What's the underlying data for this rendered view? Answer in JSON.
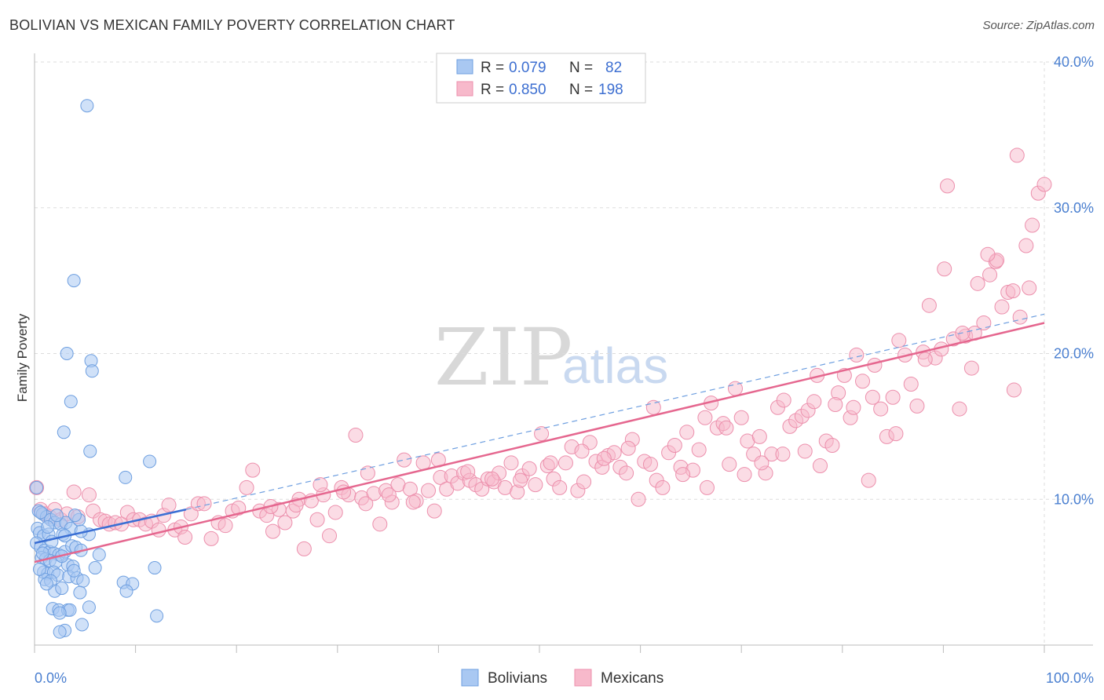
{
  "title": "BOLIVIAN VS MEXICAN FAMILY POVERTY CORRELATION CHART",
  "source": "Source: ZipAtlas.com",
  "colors": {
    "blue_fill": "#a9c8f2",
    "blue_stroke": "#6e9fe0",
    "blue_line": "#3a6fd4",
    "pink_fill": "#f7b9cb",
    "pink_stroke": "#ec8fac",
    "pink_line": "#e5678f",
    "grid": "#dddddd",
    "tick_text": "#4a7fd0"
  },
  "watermark": {
    "zip": "ZIP",
    "atlas": "atlas"
  },
  "legend_top": {
    "rows": [
      {
        "r_label": "R =",
        "r_value": "0.079",
        "n_label": "N =",
        "n_value": "82"
      },
      {
        "r_label": "R =",
        "r_value": "0.850",
        "n_label": "N =",
        "n_value": "198"
      }
    ]
  },
  "legend_bottom": [
    "Bolivians",
    "Mexicans"
  ],
  "chart_data": {
    "type": "scatter",
    "title": "BOLIVIAN VS MEXICAN FAMILY POVERTY CORRELATION CHART",
    "xlabel": "",
    "ylabel": "Family Poverty",
    "xlim": [
      0,
      100
    ],
    "ylim": [
      0,
      40
    ],
    "x_tick_labels": [
      "0.0%",
      "100.0%"
    ],
    "y_ticks": [
      10,
      20,
      30,
      40
    ],
    "y_tick_labels": [
      "10.0%",
      "20.0%",
      "30.0%",
      "40.0%"
    ],
    "grid": true,
    "legend_position": "top-center",
    "series": [
      {
        "name": "Bolivians",
        "R": 0.079,
        "N": 82,
        "trend_solid": [
          [
            0,
            7.0
          ],
          [
            15,
            9.3
          ]
        ],
        "trend_dashed": [
          [
            15,
            9.3
          ],
          [
            100,
            22.7
          ]
        ],
        "points": [
          [
            5.2,
            37
          ],
          [
            3.9,
            25
          ],
          [
            3.2,
            20
          ],
          [
            5.6,
            19.5
          ],
          [
            5.7,
            18.8
          ],
          [
            3.6,
            16.7
          ],
          [
            2.9,
            14.6
          ],
          [
            5.5,
            13.3
          ],
          [
            11.4,
            12.6
          ],
          [
            9.0,
            11.5
          ],
          [
            0.2,
            10.8
          ],
          [
            0.4,
            9.2
          ],
          [
            0.8,
            9.0
          ],
          [
            1.2,
            8.8
          ],
          [
            1.6,
            8.6
          ],
          [
            2.0,
            8.4
          ],
          [
            2.6,
            8.3
          ],
          [
            3.1,
            8.4
          ],
          [
            3.6,
            8.0
          ],
          [
            4.4,
            8.6
          ],
          [
            0.3,
            8.0
          ],
          [
            0.5,
            7.7
          ],
          [
            0.9,
            7.5
          ],
          [
            1.4,
            7.6
          ],
          [
            2.8,
            7.6
          ],
          [
            3.0,
            7.5
          ],
          [
            5.4,
            7.6
          ],
          [
            4.6,
            7.8
          ],
          [
            0.2,
            7.0
          ],
          [
            0.6,
            6.7
          ],
          [
            1.0,
            6.5
          ],
          [
            1.5,
            6.4
          ],
          [
            1.9,
            6.3
          ],
          [
            2.4,
            6.2
          ],
          [
            3.0,
            6.4
          ],
          [
            3.7,
            6.8
          ],
          [
            4.1,
            6.7
          ],
          [
            4.6,
            6.5
          ],
          [
            6.4,
            6.2
          ],
          [
            0.7,
            6.0
          ],
          [
            1.1,
            5.9
          ],
          [
            1.5,
            5.8
          ],
          [
            2.1,
            5.7
          ],
          [
            3.3,
            5.5
          ],
          [
            3.8,
            5.4
          ],
          [
            6.0,
            5.3
          ],
          [
            11.9,
            5.3
          ],
          [
            0.9,
            5.0
          ],
          [
            1.3,
            4.9
          ],
          [
            1.9,
            5.0
          ],
          [
            2.3,
            4.8
          ],
          [
            3.4,
            4.7
          ],
          [
            4.2,
            4.6
          ],
          [
            1.0,
            4.5
          ],
          [
            1.6,
            4.4
          ],
          [
            4.8,
            4.4
          ],
          [
            8.8,
            4.3
          ],
          [
            9.7,
            4.2
          ],
          [
            2.0,
            3.7
          ],
          [
            2.7,
            3.9
          ],
          [
            4.5,
            3.6
          ],
          [
            9.1,
            3.7
          ],
          [
            1.8,
            2.5
          ],
          [
            2.4,
            2.4
          ],
          [
            3.3,
            2.4
          ],
          [
            3.5,
            2.4
          ],
          [
            5.4,
            2.6
          ],
          [
            12.1,
            2.0
          ],
          [
            2.5,
            2.2
          ],
          [
            4.7,
            1.4
          ],
          [
            3.0,
            1.0
          ],
          [
            2.5,
            0.9
          ],
          [
            0.5,
            5.2
          ],
          [
            1.7,
            7.1
          ],
          [
            2.2,
            8.9
          ],
          [
            3.9,
            5.1
          ],
          [
            1.3,
            8.1
          ],
          [
            0.8,
            6.3
          ],
          [
            2.7,
            6.1
          ],
          [
            1.2,
            4.2
          ],
          [
            4.0,
            8.9
          ],
          [
            0.6,
            9.1
          ]
        ]
      },
      {
        "name": "Mexicans",
        "R": 0.85,
        "N": 198,
        "trend_solid": [
          [
            0,
            5.7
          ],
          [
            100,
            22.1
          ]
        ],
        "points": [
          [
            0.2,
            10.8
          ],
          [
            0.6,
            9.3
          ],
          [
            1.0,
            9.0
          ],
          [
            1.5,
            8.8
          ],
          [
            2.0,
            9.3
          ],
          [
            2.6,
            8.6
          ],
          [
            3.2,
            9.0
          ],
          [
            3.9,
            10.5
          ],
          [
            4.3,
            8.8
          ],
          [
            5.4,
            10.3
          ],
          [
            5.8,
            9.2
          ],
          [
            6.5,
            8.6
          ],
          [
            7.0,
            8.5
          ],
          [
            7.4,
            8.3
          ],
          [
            8.0,
            8.4
          ],
          [
            8.6,
            8.3
          ],
          [
            9.2,
            9.1
          ],
          [
            9.8,
            8.6
          ],
          [
            10.4,
            8.6
          ],
          [
            11.0,
            8.3
          ],
          [
            11.6,
            8.5
          ],
          [
            12.3,
            7.9
          ],
          [
            12.8,
            8.9
          ],
          [
            13.3,
            9.6
          ],
          [
            13.9,
            7.9
          ],
          [
            14.5,
            8.1
          ],
          [
            14.9,
            7.4
          ],
          [
            15.5,
            9.0
          ],
          [
            16.2,
            9.7
          ],
          [
            16.8,
            9.7
          ],
          [
            17.5,
            7.3
          ],
          [
            18.2,
            8.4
          ],
          [
            18.9,
            8.2
          ],
          [
            19.6,
            9.2
          ],
          [
            20.2,
            9.4
          ],
          [
            21.0,
            10.8
          ],
          [
            21.6,
            12.0
          ],
          [
            22.3,
            9.2
          ],
          [
            23.0,
            8.9
          ],
          [
            23.6,
            7.8
          ],
          [
            24.2,
            9.3
          ],
          [
            24.8,
            8.4
          ],
          [
            25.6,
            9.2
          ],
          [
            26.2,
            10.0
          ],
          [
            26.7,
            6.6
          ],
          [
            27.4,
            9.9
          ],
          [
            28.0,
            8.6
          ],
          [
            28.6,
            10.3
          ],
          [
            29.2,
            7.5
          ],
          [
            29.8,
            9.1
          ],
          [
            30.4,
            10.8
          ],
          [
            31.1,
            10.3
          ],
          [
            31.8,
            14.4
          ],
          [
            32.4,
            10.1
          ],
          [
            33.0,
            11.8
          ],
          [
            33.6,
            10.4
          ],
          [
            34.2,
            8.3
          ],
          [
            34.8,
            10.6
          ],
          [
            35.4,
            9.8
          ],
          [
            36.0,
            11.0
          ],
          [
            36.6,
            12.7
          ],
          [
            37.2,
            10.7
          ],
          [
            37.8,
            9.9
          ],
          [
            38.5,
            12.5
          ],
          [
            39.0,
            10.6
          ],
          [
            39.6,
            9.2
          ],
          [
            40.2,
            11.5
          ],
          [
            40.8,
            10.7
          ],
          [
            41.3,
            11.6
          ],
          [
            41.9,
            11.1
          ],
          [
            42.5,
            11.8
          ],
          [
            43.1,
            11.3
          ],
          [
            43.7,
            11.0
          ],
          [
            44.3,
            10.7
          ],
          [
            44.9,
            11.4
          ],
          [
            45.5,
            11.2
          ],
          [
            46.0,
            11.8
          ],
          [
            46.6,
            10.8
          ],
          [
            47.2,
            12.5
          ],
          [
            47.8,
            10.5
          ],
          [
            48.3,
            11.6
          ],
          [
            49.0,
            12.1
          ],
          [
            49.6,
            11.0
          ],
          [
            50.2,
            14.5
          ],
          [
            50.8,
            12.3
          ],
          [
            51.4,
            11.4
          ],
          [
            52.0,
            10.8
          ],
          [
            52.6,
            12.5
          ],
          [
            53.2,
            13.6
          ],
          [
            53.8,
            10.6
          ],
          [
            54.4,
            11.2
          ],
          [
            55.0,
            13.9
          ],
          [
            55.6,
            12.6
          ],
          [
            56.2,
            12.2
          ],
          [
            56.8,
            13.0
          ],
          [
            57.4,
            13.2
          ],
          [
            58.0,
            12.2
          ],
          [
            58.6,
            11.8
          ],
          [
            59.2,
            14.1
          ],
          [
            59.8,
            10.0
          ],
          [
            60.4,
            12.6
          ],
          [
            61.0,
            12.4
          ],
          [
            61.6,
            11.3
          ],
          [
            62.2,
            10.8
          ],
          [
            62.8,
            13.2
          ],
          [
            63.4,
            13.7
          ],
          [
            64.0,
            12.2
          ],
          [
            64.6,
            14.6
          ],
          [
            65.2,
            12.0
          ],
          [
            65.8,
            13.4
          ],
          [
            66.4,
            15.6
          ],
          [
            67.0,
            16.6
          ],
          [
            67.6,
            14.9
          ],
          [
            68.2,
            15.2
          ],
          [
            68.8,
            12.4
          ],
          [
            69.4,
            17.6
          ],
          [
            70.0,
            15.6
          ],
          [
            70.6,
            14.0
          ],
          [
            71.2,
            13.1
          ],
          [
            71.8,
            14.3
          ],
          [
            72.4,
            11.8
          ],
          [
            73.0,
            13.1
          ],
          [
            73.6,
            16.3
          ],
          [
            74.2,
            16.8
          ],
          [
            74.8,
            15.0
          ],
          [
            75.4,
            15.4
          ],
          [
            76.0,
            15.7
          ],
          [
            76.6,
            16.1
          ],
          [
            77.2,
            16.7
          ],
          [
            77.8,
            12.3
          ],
          [
            78.4,
            14.0
          ],
          [
            79.0,
            13.7
          ],
          [
            79.6,
            17.3
          ],
          [
            80.2,
            18.5
          ],
          [
            80.8,
            15.6
          ],
          [
            81.4,
            19.9
          ],
          [
            82.0,
            18.1
          ],
          [
            82.6,
            11.3
          ],
          [
            83.2,
            19.2
          ],
          [
            83.8,
            16.2
          ],
          [
            84.4,
            14.3
          ],
          [
            85.0,
            17.0
          ],
          [
            85.6,
            20.9
          ],
          [
            86.2,
            19.9
          ],
          [
            86.8,
            17.9
          ],
          [
            87.4,
            16.4
          ],
          [
            88.0,
            20.1
          ],
          [
            88.6,
            23.3
          ],
          [
            89.2,
            19.7
          ],
          [
            89.8,
            20.3
          ],
          [
            90.4,
            31.5
          ],
          [
            91.0,
            21.0
          ],
          [
            91.6,
            16.2
          ],
          [
            92.2,
            21.2
          ],
          [
            92.8,
            19.0
          ],
          [
            93.4,
            24.8
          ],
          [
            94.0,
            22.1
          ],
          [
            94.6,
            25.4
          ],
          [
            95.2,
            26.3
          ],
          [
            95.8,
            23.2
          ],
          [
            96.4,
            24.2
          ],
          [
            97.0,
            17.5
          ],
          [
            97.6,
            22.5
          ],
          [
            98.2,
            27.4
          ],
          [
            98.8,
            28.8
          ],
          [
            99.4,
            31.0
          ],
          [
            100.0,
            31.6
          ],
          [
            98.5,
            24.5
          ],
          [
            97.3,
            33.6
          ],
          [
            96.9,
            24.3
          ],
          [
            95.3,
            26.4
          ],
          [
            94.4,
            26.8
          ],
          [
            93.1,
            21.4
          ],
          [
            91.9,
            21.4
          ],
          [
            90.1,
            25.8
          ],
          [
            88.2,
            19.6
          ],
          [
            85.3,
            14.5
          ],
          [
            83.0,
            17.0
          ],
          [
            81.1,
            16.3
          ],
          [
            79.3,
            16.5
          ],
          [
            77.5,
            18.5
          ],
          [
            76.3,
            13.3
          ],
          [
            74.1,
            13.1
          ],
          [
            72.0,
            12.5
          ],
          [
            70.3,
            11.7
          ],
          [
            68.5,
            14.9
          ],
          [
            66.6,
            10.8
          ],
          [
            64.2,
            11.7
          ],
          [
            61.3,
            16.3
          ],
          [
            58.8,
            13.5
          ],
          [
            56.4,
            12.8
          ],
          [
            54.2,
            13.3
          ],
          [
            51.1,
            12.5
          ],
          [
            48.1,
            11.3
          ],
          [
            45.3,
            11.4
          ],
          [
            42.9,
            11.9
          ],
          [
            40.0,
            12.7
          ],
          [
            37.5,
            9.8
          ],
          [
            35.1,
            10.3
          ],
          [
            32.8,
            9.7
          ],
          [
            30.6,
            10.5
          ],
          [
            28.3,
            11.0
          ],
          [
            25.9,
            9.6
          ],
          [
            23.4,
            9.5
          ]
        ]
      }
    ]
  }
}
